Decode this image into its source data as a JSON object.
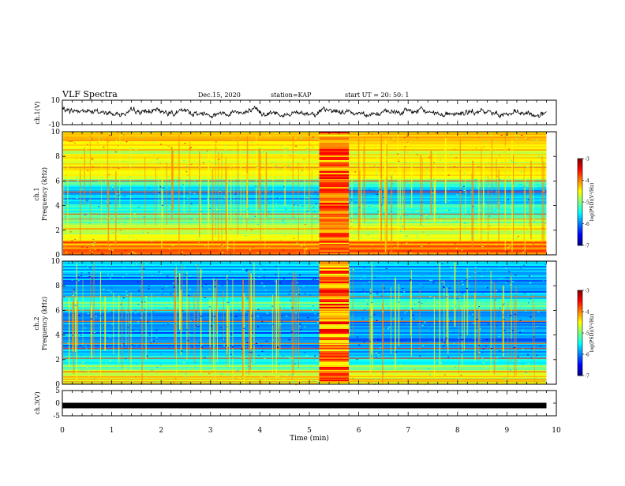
{
  "header": {
    "title": "VLF Spectra",
    "date": "Dec.15, 2020",
    "station": "station=KAP",
    "start": "start UT =  20: 50: 1"
  },
  "chart_data": [
    {
      "type": "line",
      "panel": "ch1-waveform",
      "ylabel": "ch.1(V)",
      "ylim": [
        -10,
        10
      ],
      "yticks": [
        "10",
        "-10"
      ],
      "x_range_min": [
        0,
        9.8
      ],
      "trend_points": [
        {
          "x": 0.0,
          "y": 2
        },
        {
          "x": 0.5,
          "y": 1
        },
        {
          "x": 1.0,
          "y": -1
        },
        {
          "x": 1.5,
          "y": 0
        },
        {
          "x": 2.0,
          "y": 1
        },
        {
          "x": 2.5,
          "y": 0
        },
        {
          "x": 3.0,
          "y": -1
        },
        {
          "x": 3.5,
          "y": 1
        },
        {
          "x": 4.0,
          "y": 0
        },
        {
          "x": 4.5,
          "y": -1
        },
        {
          "x": 5.0,
          "y": 0
        },
        {
          "x": 5.5,
          "y": 1
        },
        {
          "x": 6.0,
          "y": 0
        },
        {
          "x": 6.5,
          "y": -1
        },
        {
          "x": 7.0,
          "y": 1
        },
        {
          "x": 7.5,
          "y": 0
        },
        {
          "x": 8.0,
          "y": -1
        },
        {
          "x": 8.5,
          "y": 0
        },
        {
          "x": 9.0,
          "y": -1
        },
        {
          "x": 9.5,
          "y": -2
        },
        {
          "x": 9.8,
          "y": -1
        }
      ]
    },
    {
      "type": "heatmap",
      "panel": "ch1-spectrogram",
      "ylabel": "Frequency (kHz)",
      "channel_label": "ch.1",
      "ylim": [
        0,
        10
      ],
      "yticks": [
        "0",
        "2",
        "4",
        "6",
        "8",
        "10"
      ],
      "x_range_min": [
        0,
        9.8
      ],
      "burst_min": [
        5.2,
        5.8
      ],
      "frequency_profile": [
        {
          "f": 0.5,
          "v": -4.0
        },
        {
          "f": 1.5,
          "v": -4.6
        },
        {
          "f": 2.5,
          "v": -4.8
        },
        {
          "f": 3.5,
          "v": -5.2
        },
        {
          "f": 4.5,
          "v": -5.8
        },
        {
          "f": 5.5,
          "v": -5.6
        },
        {
          "f": 6.5,
          "v": -4.5
        },
        {
          "f": 7.5,
          "v": -4.6
        },
        {
          "f": 8.5,
          "v": -4.5
        },
        {
          "f": 9.5,
          "v": -4.4
        }
      ],
      "colorbar": {
        "label": "log(PSD)(V²/Hz)",
        "ticks": [
          "-3",
          "-4",
          "-5",
          "-6",
          "-7"
        ],
        "range": [
          -7,
          -3
        ]
      }
    },
    {
      "type": "heatmap",
      "panel": "ch2-spectrogram",
      "ylabel": "Frequency (kHz)",
      "channel_label": "ch.2",
      "ylim": [
        0,
        10
      ],
      "yticks": [
        "0",
        "2",
        "4",
        "6",
        "8",
        "10"
      ],
      "x_range_min": [
        0,
        9.8
      ],
      "burst_min": [
        5.2,
        5.8
      ],
      "frequency_profile": [
        {
          "f": 0.5,
          "v": -4.6
        },
        {
          "f": 1.5,
          "v": -5.0
        },
        {
          "f": 2.5,
          "v": -5.8
        },
        {
          "f": 3.5,
          "v": -6.0
        },
        {
          "f": 4.5,
          "v": -5.8
        },
        {
          "f": 5.5,
          "v": -6.0
        },
        {
          "f": 6.5,
          "v": -5.2
        },
        {
          "f": 7.5,
          "v": -5.8
        },
        {
          "f": 8.5,
          "v": -5.9
        },
        {
          "f": 9.5,
          "v": -5.7
        }
      ],
      "colorbar": {
        "label": "log(PSD)(V²/Hz)",
        "ticks": [
          "-3",
          "-4",
          "-5",
          "-6",
          "-7"
        ],
        "range": [
          -7,
          -3
        ]
      }
    },
    {
      "type": "line",
      "panel": "ch3-waveform",
      "ylabel": "ch.3(V)",
      "ylim": [
        -5,
        5
      ],
      "yticks": [
        "5",
        "0",
        "-5"
      ],
      "x_range_min": [
        0,
        9.8
      ],
      "level_v": 0
    }
  ],
  "xaxis": {
    "label": "Time (min)",
    "ticks": [
      "0",
      "1",
      "2",
      "3",
      "4",
      "5",
      "6",
      "7",
      "8",
      "9",
      "10"
    ],
    "range": [
      0,
      10
    ]
  },
  "colors": {
    "jet": [
      "#00007f",
      "#0000ff",
      "#007fff",
      "#00ffff",
      "#7fff7f",
      "#ffff00",
      "#ff7f00",
      "#ff0000",
      "#7f0000"
    ]
  }
}
